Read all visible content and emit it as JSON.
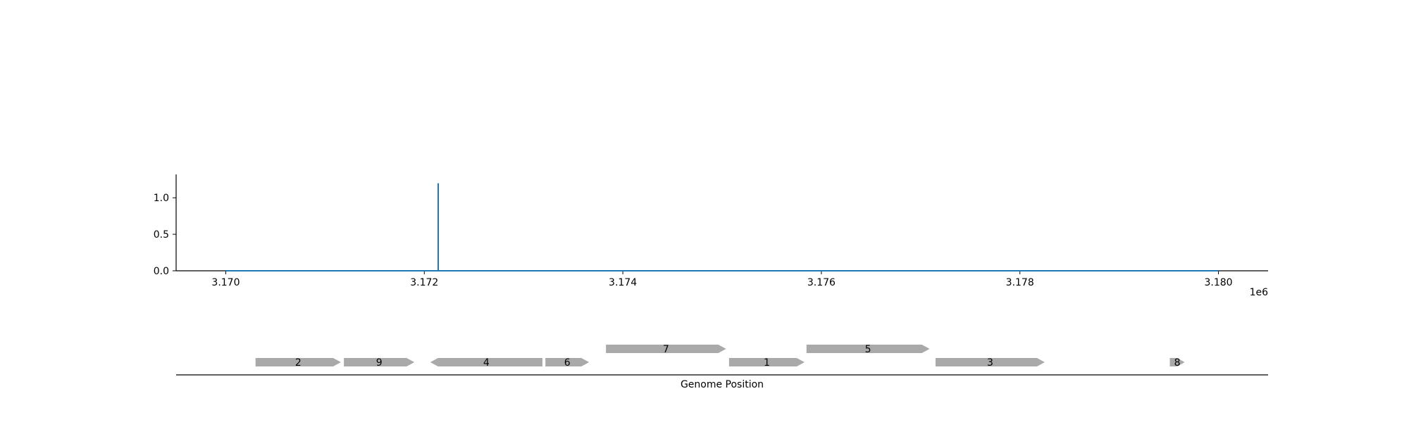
{
  "chart_data": {
    "type": "line",
    "series": [
      {
        "color": "#1f77b4",
        "x": [
          3170000,
          3172140,
          3172140,
          3172140,
          3180000
        ],
        "y": [
          0,
          0,
          1.2,
          0,
          0
        ]
      }
    ],
    "xlim": [
      3169500,
      3180500
    ],
    "ylim": [
      0,
      1.32
    ],
    "x_ticks": [
      3170000,
      3172000,
      3174000,
      3176000,
      3178000,
      3180000
    ],
    "x_tick_labels": [
      "3.170",
      "3.172",
      "3.174",
      "3.176",
      "3.178",
      "3.180"
    ],
    "x_offset_label": "1e6",
    "y_ticks": [
      0.0,
      0.5,
      1.0
    ],
    "y_tick_labels": [
      "0.0",
      "0.5",
      "1.0"
    ],
    "grid": false
  },
  "genes": {
    "color": "#a9a9a9",
    "items": [
      {
        "label": "2",
        "start": 3170300,
        "end": 3171160,
        "strand": "+",
        "row": 0
      },
      {
        "label": "9",
        "start": 3171190,
        "end": 3171900,
        "strand": "+",
        "row": 0
      },
      {
        "label": "4",
        "start": 3172060,
        "end": 3173190,
        "strand": "-",
        "row": 0
      },
      {
        "label": "6",
        "start": 3173220,
        "end": 3173660,
        "strand": "+",
        "row": 0
      },
      {
        "label": "7",
        "start": 3173830,
        "end": 3175040,
        "strand": "+",
        "row": 1
      },
      {
        "label": "1",
        "start": 3175070,
        "end": 3175830,
        "strand": "+",
        "row": 0
      },
      {
        "label": "5",
        "start": 3175850,
        "end": 3177090,
        "strand": "+",
        "row": 1
      },
      {
        "label": "3",
        "start": 3177150,
        "end": 3178250,
        "strand": "+",
        "row": 0
      },
      {
        "label": "8",
        "start": 3179510,
        "end": 3179660,
        "strand": "+",
        "row": 0
      }
    ],
    "axis_label": "Genome Position"
  }
}
